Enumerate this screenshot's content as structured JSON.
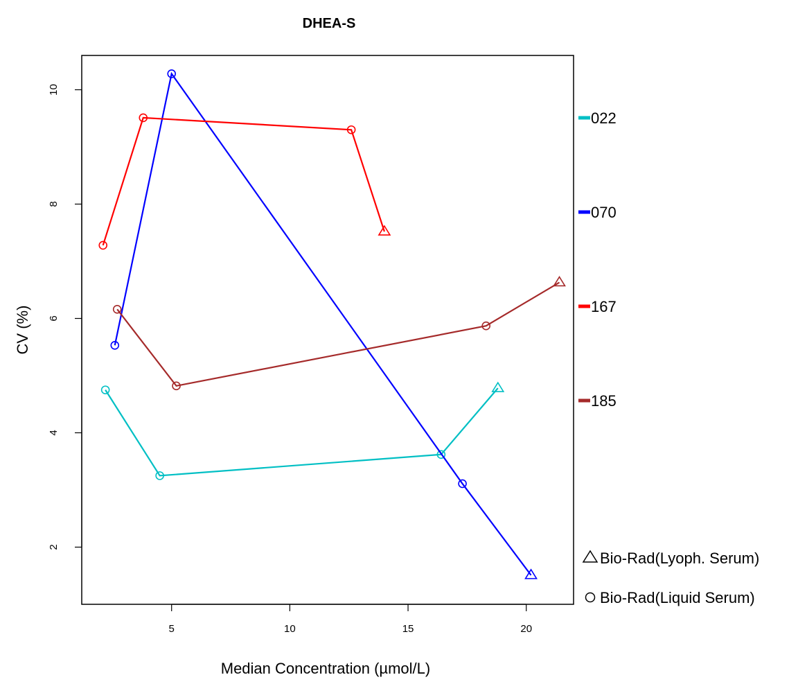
{
  "chart_data": {
    "type": "line",
    "title": "DHEA-S",
    "xlabel": "Median Concentration  (µmol/L)",
    "ylabel": "CV (%)",
    "xlim": [
      1.2,
      22.0
    ],
    "ylim": [
      1.0,
      10.6
    ],
    "xticks": [
      5,
      10,
      15,
      20
    ],
    "yticks": [
      2,
      4,
      6,
      8,
      10
    ],
    "grid": false,
    "legend_placement": "right",
    "series": [
      {
        "name": "022",
        "color": "#00BFC4",
        "points": [
          {
            "x": 2.2,
            "y": 4.75,
            "marker": "circle"
          },
          {
            "x": 4.5,
            "y": 3.25,
            "marker": "circle"
          },
          {
            "x": 16.4,
            "y": 3.62,
            "marker": "circle"
          },
          {
            "x": 18.8,
            "y": 4.78,
            "marker": "triangle"
          }
        ]
      },
      {
        "name": "070",
        "color": "#0000FF",
        "points": [
          {
            "x": 2.6,
            "y": 5.53,
            "marker": "circle"
          },
          {
            "x": 5.0,
            "y": 10.28,
            "marker": "circle"
          },
          {
            "x": 17.3,
            "y": 3.11,
            "marker": "circle"
          },
          {
            "x": 20.2,
            "y": 1.51,
            "marker": "triangle"
          }
        ]
      },
      {
        "name": "167",
        "color": "#FF0000",
        "points": [
          {
            "x": 2.1,
            "y": 7.28,
            "marker": "circle"
          },
          {
            "x": 3.8,
            "y": 9.51,
            "marker": "circle"
          },
          {
            "x": 12.6,
            "y": 9.3,
            "marker": "circle"
          },
          {
            "x": 14.0,
            "y": 7.52,
            "marker": "triangle"
          }
        ]
      },
      {
        "name": "185",
        "color": "#A52A2A",
        "points": [
          {
            "x": 2.7,
            "y": 6.16,
            "marker": "circle"
          },
          {
            "x": 5.2,
            "y": 4.82,
            "marker": "circle"
          },
          {
            "x": 18.3,
            "y": 5.87,
            "marker": "circle"
          },
          {
            "x": 21.4,
            "y": 6.63,
            "marker": "triangle"
          }
        ]
      }
    ],
    "shape_legend": [
      {
        "marker": "triangle",
        "label": "Bio-Rad(Lyoph. Serum)"
      },
      {
        "marker": "circle",
        "label": "Bio-Rad(Liquid Serum)"
      }
    ]
  }
}
